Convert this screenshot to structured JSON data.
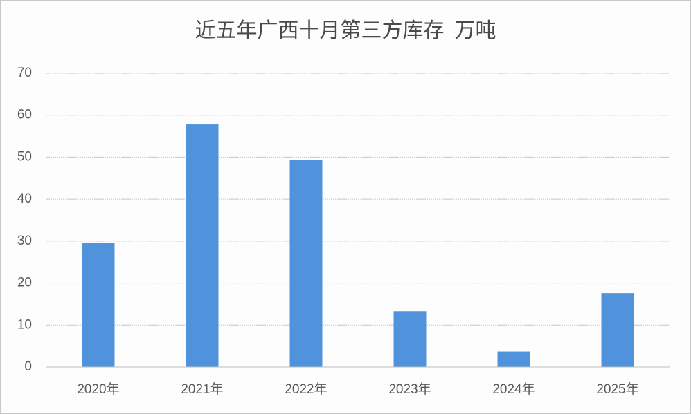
{
  "chart_data": {
    "type": "bar",
    "title": "近五年广西十月第三方库存  万吨",
    "categories": [
      "2020年",
      "2021年",
      "2022年",
      "2023年",
      "2024年",
      "2025年"
    ],
    "values": [
      29.5,
      57.8,
      49.3,
      13.3,
      3.7,
      17.6
    ],
    "color": "#5093dc",
    "ylim": [
      0,
      70
    ],
    "yticks": [
      0,
      10,
      20,
      30,
      40,
      50,
      60,
      70
    ],
    "grid": true
  }
}
